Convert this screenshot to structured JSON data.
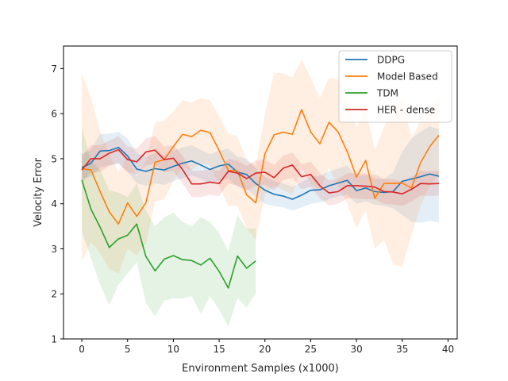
{
  "chart_data": {
    "type": "line",
    "title": "",
    "xlabel": "Environment Samples (x1000)",
    "ylabel": "Velocity Error",
    "xlim": [
      -2,
      41
    ],
    "ylim": [
      1,
      7.5
    ],
    "xticks": [
      0,
      5,
      10,
      15,
      20,
      25,
      30,
      35,
      40
    ],
    "yticks": [
      1,
      2,
      3,
      4,
      5,
      6,
      7
    ],
    "grid": false,
    "legend_position": "top-right",
    "series": [
      {
        "name": "DDPG",
        "color": "#1f77b4",
        "x": [
          0,
          1,
          2,
          3,
          4,
          5,
          6,
          7,
          8,
          9,
          10,
          11,
          12,
          13,
          14,
          15,
          16,
          17,
          18,
          19,
          20,
          21,
          22,
          23,
          24,
          25,
          26,
          27,
          28,
          29,
          30,
          31,
          32,
          33,
          34,
          35,
          36,
          37,
          38,
          39
        ],
        "values": [
          4.8,
          4.9,
          5.17,
          5.18,
          5.25,
          5.06,
          4.77,
          4.72,
          4.78,
          4.75,
          4.83,
          4.9,
          4.95,
          4.86,
          4.76,
          4.84,
          4.88,
          4.7,
          4.65,
          4.45,
          4.3,
          4.21,
          4.17,
          4.1,
          4.19,
          4.3,
          4.31,
          4.4,
          4.46,
          4.52,
          4.29,
          4.35,
          4.27,
          4.25,
          4.27,
          4.5,
          4.55,
          4.6,
          4.66,
          4.61
        ],
        "lower": [
          4.55,
          4.6,
          4.8,
          4.85,
          4.9,
          4.7,
          4.45,
          4.4,
          4.45,
          4.42,
          4.5,
          4.57,
          4.63,
          4.55,
          4.45,
          4.52,
          4.55,
          4.38,
          4.32,
          4.15,
          4.0,
          3.95,
          3.92,
          3.85,
          3.92,
          4.0,
          4.03,
          4.1,
          4.16,
          4.2,
          4.0,
          4.05,
          3.98,
          3.95,
          3.9,
          3.75,
          3.6,
          3.58,
          3.62,
          3.58
        ],
        "upper": [
          5.1,
          5.2,
          5.55,
          5.55,
          5.6,
          5.45,
          5.12,
          5.05,
          5.12,
          5.08,
          5.18,
          5.25,
          5.3,
          5.2,
          5.1,
          5.18,
          5.22,
          5.05,
          5.0,
          4.78,
          4.6,
          4.5,
          4.45,
          4.38,
          4.48,
          4.6,
          4.62,
          4.72,
          4.78,
          4.85,
          4.6,
          4.65,
          4.56,
          4.55,
          4.7,
          5.15,
          5.45,
          5.6,
          5.72,
          5.65
        ]
      },
      {
        "name": "Model Based",
        "color": "#ff7f0e",
        "x": [
          0,
          1,
          2,
          3,
          4,
          5,
          6,
          7,
          8,
          9,
          10,
          11,
          12,
          13,
          14,
          15,
          16,
          17,
          18,
          19,
          20,
          21,
          22,
          23,
          24,
          25,
          26,
          27,
          28,
          29,
          30,
          31,
          32,
          33,
          34,
          35,
          36,
          37,
          38,
          39
        ],
        "values": [
          4.78,
          4.75,
          4.27,
          3.82,
          3.55,
          4.02,
          3.72,
          4.02,
          4.92,
          4.98,
          5.27,
          5.54,
          5.49,
          5.63,
          5.58,
          5.18,
          4.74,
          4.73,
          4.2,
          4.02,
          5.11,
          5.53,
          5.59,
          5.54,
          6.09,
          5.59,
          5.33,
          5.81,
          5.59,
          5.15,
          4.59,
          4.96,
          4.12,
          4.45,
          4.45,
          4.46,
          4.35,
          4.91,
          5.27,
          5.52
        ],
        "lower": [
          2.7,
          3.15,
          2.9,
          2.55,
          2.45,
          3.0,
          2.85,
          3.1,
          4.05,
          4.1,
          4.5,
          4.8,
          4.75,
          4.9,
          4.85,
          4.4,
          3.95,
          3.95,
          3.45,
          3.2,
          4.2,
          4.4,
          4.3,
          4.2,
          4.8,
          4.45,
          4.3,
          4.8,
          4.4,
          4.0,
          3.45,
          3.85,
          3.0,
          3.2,
          2.65,
          2.6,
          3.3,
          3.95,
          4.4,
          4.65
        ],
        "upper": [
          6.9,
          6.35,
          5.6,
          5.1,
          4.7,
          5.05,
          4.6,
          4.95,
          5.8,
          5.85,
          6.05,
          6.3,
          6.25,
          6.35,
          6.3,
          5.95,
          5.55,
          5.5,
          4.95,
          4.85,
          6.0,
          6.9,
          6.9,
          6.8,
          7.2,
          6.8,
          6.35,
          6.8,
          6.75,
          6.3,
          5.7,
          6.1,
          5.2,
          5.7,
          6.2,
          6.35,
          5.45,
          5.85,
          6.15,
          6.35
        ]
      },
      {
        "name": "TDM",
        "color": "#2ca02c",
        "x": [
          0,
          1,
          2,
          3,
          4,
          5,
          6,
          7,
          8,
          9,
          10,
          11,
          12,
          13,
          14,
          15,
          16,
          17,
          18,
          19
        ],
        "values": [
          4.53,
          3.88,
          3.48,
          3.03,
          3.22,
          3.3,
          3.55,
          2.83,
          2.51,
          2.77,
          2.85,
          2.76,
          2.74,
          2.64,
          2.79,
          2.5,
          2.13,
          2.84,
          2.57,
          2.73
        ],
        "lower": [
          3.4,
          2.8,
          2.2,
          1.75,
          2.2,
          2.45,
          2.7,
          1.8,
          1.5,
          1.85,
          1.9,
          1.9,
          1.95,
          1.55,
          1.95,
          1.65,
          1.28,
          1.9,
          1.7,
          2.0
        ],
        "upper": [
          5.7,
          4.95,
          4.75,
          4.3,
          4.25,
          4.15,
          4.45,
          3.85,
          3.5,
          3.7,
          3.8,
          3.6,
          3.5,
          3.7,
          3.6,
          3.35,
          2.95,
          3.75,
          3.45,
          3.45
        ]
      },
      {
        "name": "HER - dense",
        "color": "#d62728",
        "x": [
          0,
          1,
          2,
          3,
          4,
          5,
          6,
          7,
          8,
          9,
          10,
          11,
          12,
          13,
          14,
          15,
          16,
          17,
          18,
          19,
          20,
          21,
          22,
          23,
          24,
          25,
          26,
          27,
          28,
          29,
          30,
          31,
          32,
          33,
          34,
          35,
          36,
          37,
          38,
          39
        ],
        "values": [
          4.75,
          5.0,
          5.0,
          5.12,
          5.2,
          4.98,
          4.93,
          5.15,
          5.19,
          4.98,
          5.01,
          4.76,
          4.44,
          4.44,
          4.48,
          4.45,
          4.72,
          4.68,
          4.56,
          4.68,
          4.7,
          4.58,
          4.79,
          4.86,
          4.6,
          4.65,
          4.4,
          4.24,
          4.27,
          4.4,
          4.4,
          4.39,
          4.37,
          4.27,
          4.26,
          4.22,
          4.32,
          4.45,
          4.44,
          4.45
        ],
        "lower": [
          4.45,
          4.7,
          4.7,
          4.85,
          4.9,
          4.7,
          4.65,
          4.85,
          4.88,
          4.7,
          4.72,
          4.45,
          4.15,
          4.15,
          4.2,
          4.17,
          4.45,
          4.4,
          4.28,
          4.4,
          4.42,
          4.3,
          4.52,
          4.58,
          4.32,
          4.38,
          4.12,
          3.96,
          4.0,
          4.12,
          4.12,
          4.1,
          4.1,
          4.0,
          3.98,
          3.95,
          4.05,
          4.18,
          4.17,
          4.18
        ],
        "upper": [
          5.05,
          5.3,
          5.3,
          5.4,
          5.5,
          5.27,
          5.22,
          5.45,
          5.5,
          5.27,
          5.3,
          5.07,
          4.73,
          4.73,
          4.77,
          4.73,
          5.0,
          4.96,
          4.84,
          4.96,
          4.98,
          4.86,
          5.07,
          5.14,
          4.88,
          4.93,
          4.68,
          4.52,
          4.55,
          4.68,
          4.68,
          4.67,
          4.65,
          4.55,
          4.54,
          4.5,
          4.6,
          4.73,
          4.72,
          4.73
        ]
      }
    ]
  }
}
